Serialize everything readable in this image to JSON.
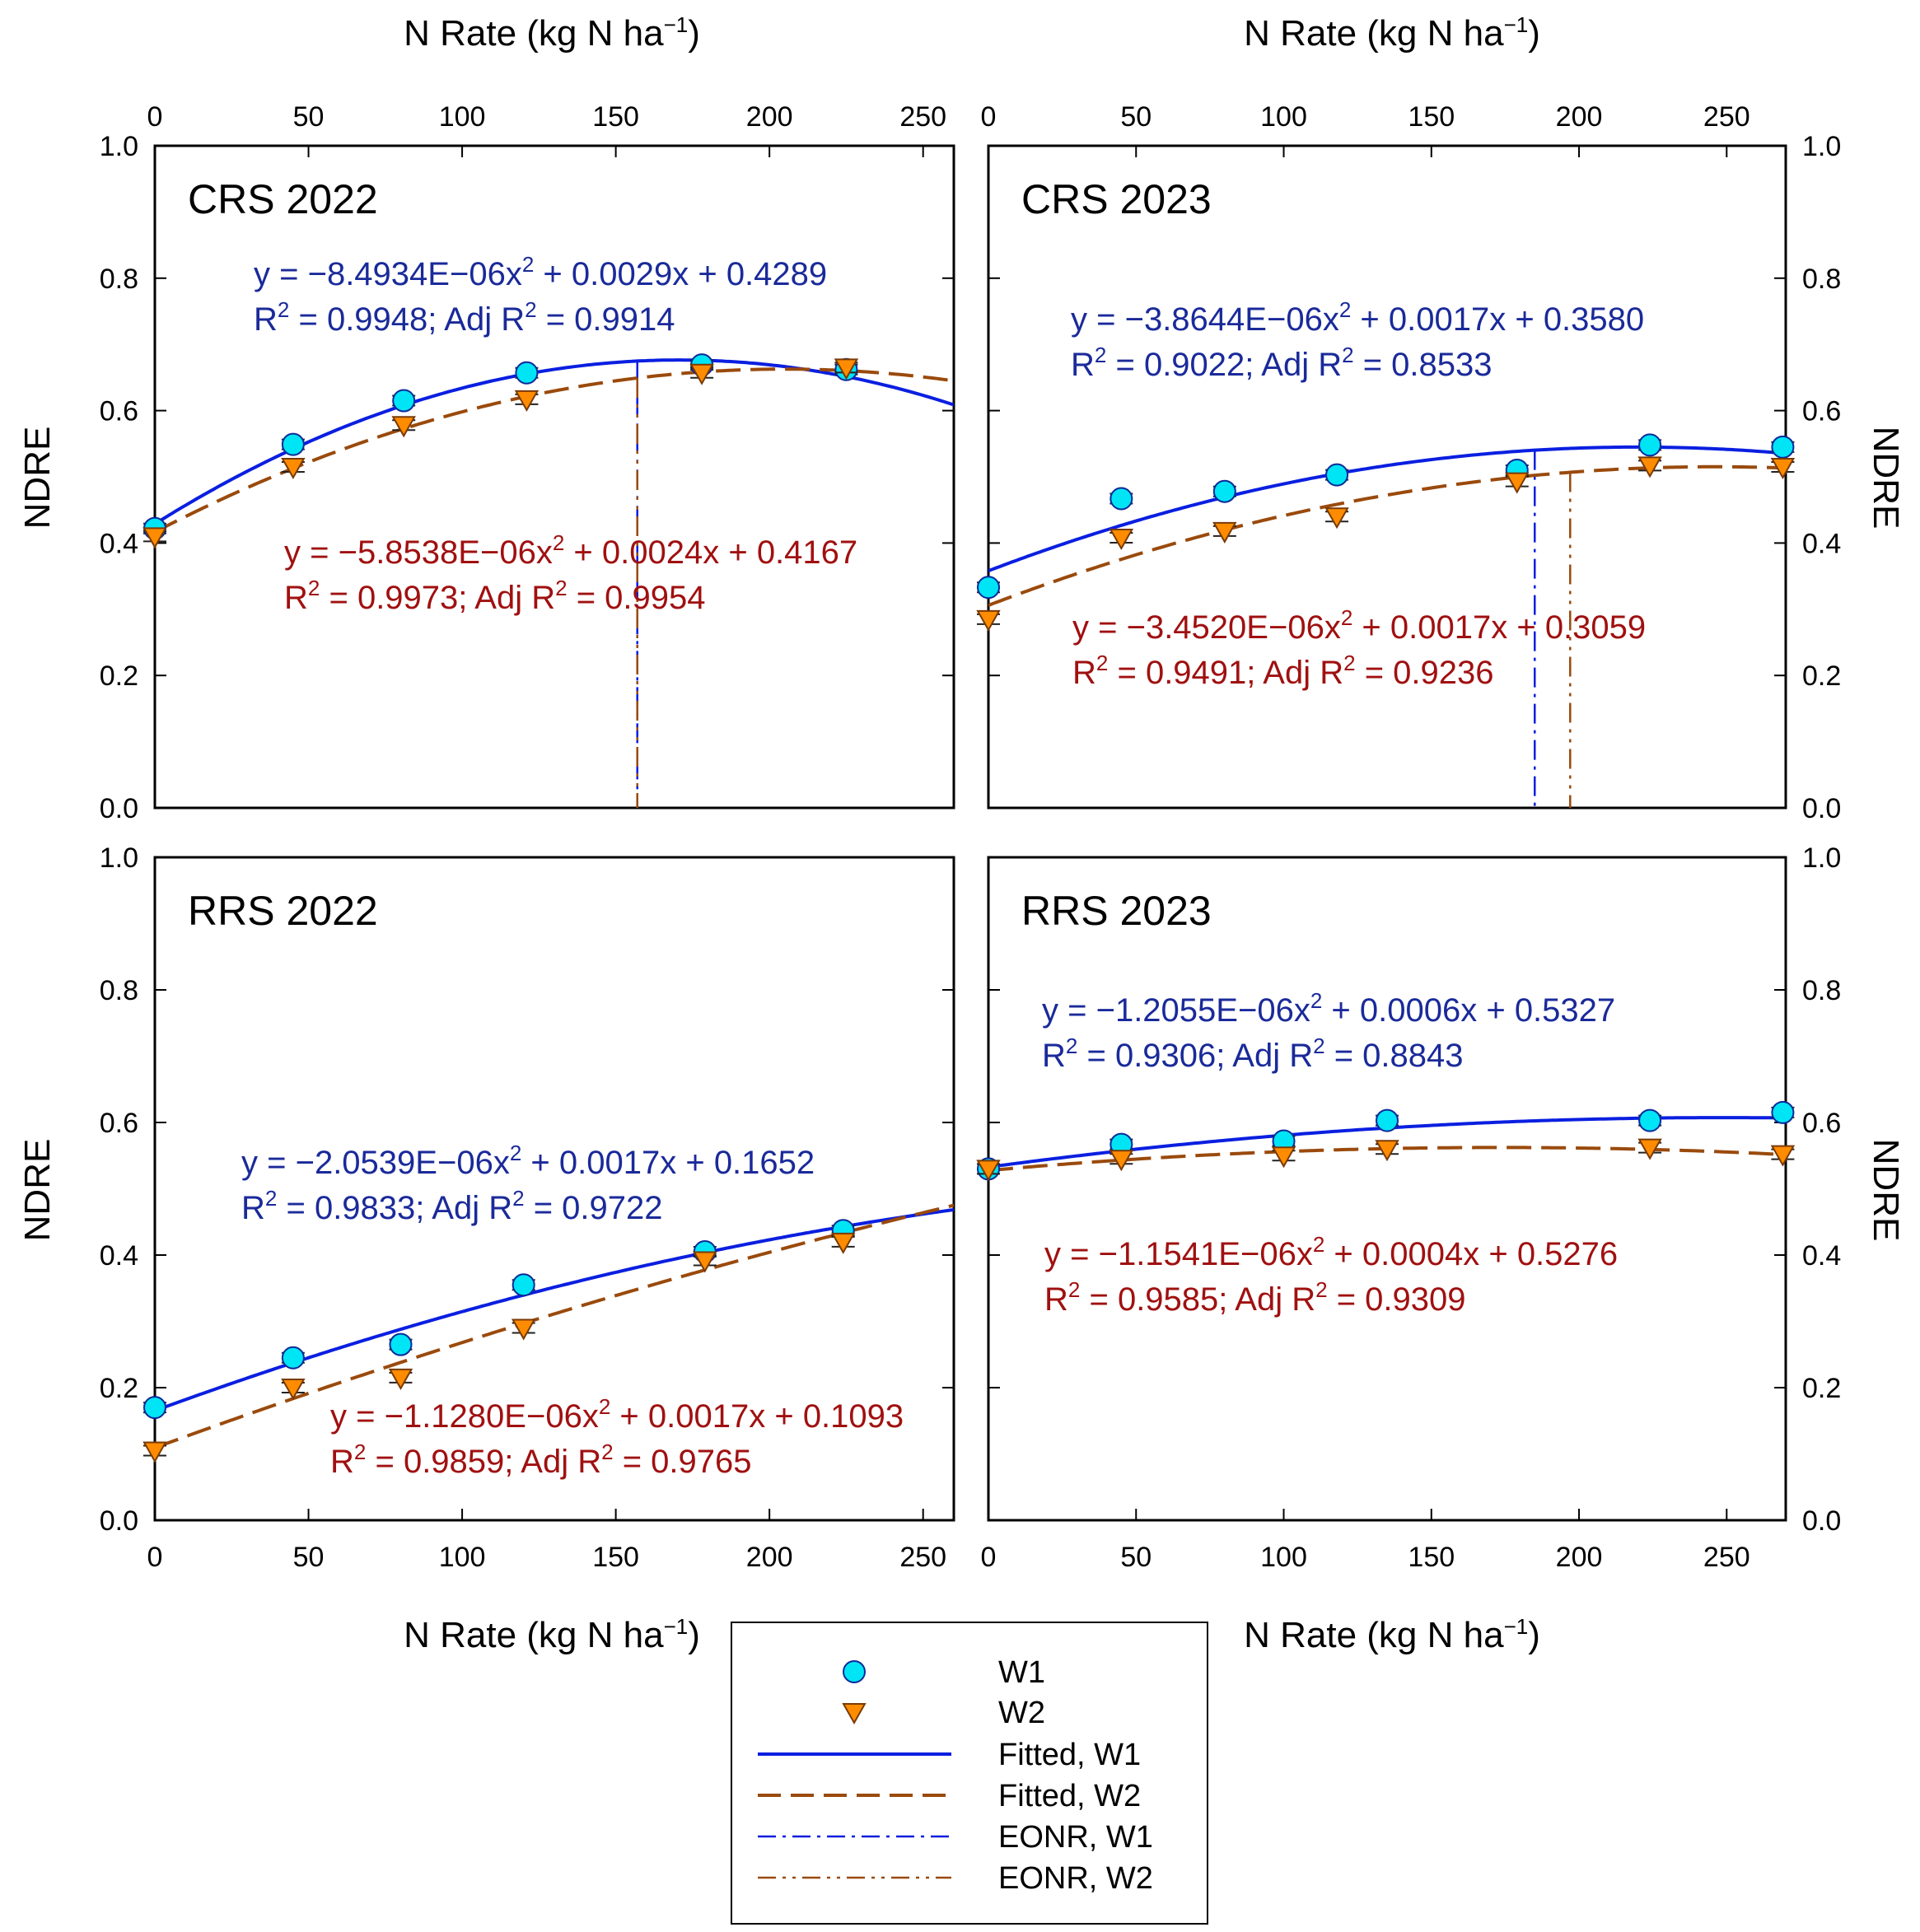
{
  "colors": {
    "w1_line": "#0a1fe0",
    "w1_marker": "#00e5f5",
    "w2_line": "#9a4a0c",
    "w2_marker": "#ff8c00",
    "w1_eq": "#1a2a9a",
    "w2_eq": "#a01010"
  },
  "xlabel": "N Rate (kg N ha",
  "xlabel_sup": "−1",
  "xlabel_close": ")",
  "ylabel": "NDRE",
  "legend": {
    "w1": "W1",
    "w2": "W2",
    "fitted_w1": "Fitted, W1",
    "fitted_w2": "Fitted, W2",
    "eonr_w1": "EONR, W1",
    "eonr_w2": "EONR, W2"
  },
  "chart_data": [
    {
      "id": "crs2022",
      "type": "scatter",
      "title": "CRS 2022",
      "xlim": [
        0,
        260
      ],
      "ylim": [
        0,
        1
      ],
      "xticks": [
        "0",
        "50",
        "100",
        "150",
        "200",
        "250"
      ],
      "yticks": [
        "0.0",
        "0.2",
        "0.4",
        "0.6",
        "0.8",
        "1.0"
      ],
      "series": [
        {
          "name": "W1",
          "x": [
            0,
            45,
            81,
            121,
            178,
            225
          ],
          "y": [
            0.422,
            0.549,
            0.615,
            0.657,
            0.669,
            0.662
          ],
          "fit": {
            "a": -8.4934e-06,
            "b": 0.0029,
            "c": 0.4289
          },
          "eonr": 157,
          "eq_line1": "y = −8.4934E−06x",
          "eq_line1b": " + 0.0029x + 0.4289",
          "eq_line2a": "R",
          "eq_line2b": " = 0.9948; Adj R",
          "eq_line2c": " = 0.9914"
        },
        {
          "name": "W2",
          "x": [
            0,
            45,
            81,
            121,
            178,
            225
          ],
          "y": [
            0.41,
            0.515,
            0.578,
            0.617,
            0.657,
            0.665
          ],
          "fit": {
            "a": -5.8538e-06,
            "b": 0.0024,
            "c": 0.4167
          },
          "eonr": 157,
          "eq_line1": "y = −5.8538E−06x",
          "eq_line1b": " + 0.0024x + 0.4167",
          "eq_line2a": "R",
          "eq_line2b": " = 0.9973; Adj R",
          "eq_line2c": " = 0.9954"
        }
      ]
    },
    {
      "id": "crs2023",
      "type": "scatter",
      "title": "CRS 2023",
      "xlim": [
        0,
        270
      ],
      "ylim": [
        0,
        1
      ],
      "xticks": [
        "0",
        "50",
        "100",
        "150",
        "200",
        "250"
      ],
      "yticks": [
        "0.0",
        "0.2",
        "0.4",
        "0.6",
        "0.8",
        "1.0"
      ],
      "series": [
        {
          "name": "W1",
          "x": [
            0,
            45,
            80,
            118,
            179,
            224,
            269
          ],
          "y": [
            0.333,
            0.467,
            0.478,
            0.503,
            0.51,
            0.548,
            0.545
          ],
          "fit": {
            "a": -3.8644e-06,
            "b": 0.0017,
            "c": 0.358
          },
          "eonr": 185,
          "eq_line1": "y = −3.8644E−06x",
          "eq_line1b": " + 0.0017x + 0.3580",
          "eq_line2a": "R",
          "eq_line2b": " = 0.9022; Adj R",
          "eq_line2c": " = 0.8533"
        },
        {
          "name": "W2",
          "x": [
            0,
            45,
            80,
            118,
            179,
            224,
            269
          ],
          "y": [
            0.285,
            0.408,
            0.418,
            0.44,
            0.493,
            0.517,
            0.515
          ],
          "fit": {
            "a": -3.452e-06,
            "b": 0.0017,
            "c": 0.3059
          },
          "eonr": 197,
          "eq_line1": "y = −3.4520E−06x",
          "eq_line1b": " + 0.0017x + 0.3059",
          "eq_line2a": "R",
          "eq_line2b": " = 0.9491; Adj R",
          "eq_line2c": " = 0.9236"
        }
      ]
    },
    {
      "id": "rrs2022",
      "type": "scatter",
      "title": "RRS 2022",
      "xlim": [
        0,
        260
      ],
      "ylim": [
        0,
        1
      ],
      "xticks": [
        "0",
        "50",
        "100",
        "150",
        "200",
        "250"
      ],
      "yticks": [
        "0.0",
        "0.2",
        "0.4",
        "0.6",
        "0.8",
        "1.0"
      ],
      "series": [
        {
          "name": "W1",
          "x": [
            0,
            45,
            80,
            120,
            179,
            224
          ],
          "y": [
            0.17,
            0.245,
            0.265,
            0.355,
            0.405,
            0.437
          ],
          "fit": {
            "a": -2.0539e-06,
            "b": 0.0017,
            "c": 0.1652
          },
          "eq_line1": "y = −2.0539E−06x",
          "eq_line1b": " + 0.0017x + 0.1652",
          "eq_line2a": "R",
          "eq_line2b": " = 0.9833; Adj R",
          "eq_line2c": " = 0.9722"
        },
        {
          "name": "W2",
          "x": [
            0,
            45,
            80,
            120,
            179,
            224
          ],
          "y": [
            0.105,
            0.2,
            0.215,
            0.29,
            0.392,
            0.42
          ],
          "fit": {
            "a": -1.128e-06,
            "b": 0.0017,
            "c": 0.1093
          },
          "eq_line1": "y = −1.1280E−06x",
          "eq_line1b": " + 0.0017x + 0.1093",
          "eq_line2a": "R",
          "eq_line2b": " = 0.9859; Adj R",
          "eq_line2c": " = 0.9765"
        }
      ]
    },
    {
      "id": "rrs2023",
      "type": "scatter",
      "title": "RRS 2023",
      "xlim": [
        0,
        270
      ],
      "ylim": [
        0,
        1
      ],
      "xticks": [
        "0",
        "50",
        "100",
        "150",
        "200",
        "250"
      ],
      "yticks": [
        "0.0",
        "0.2",
        "0.4",
        "0.6",
        "0.8",
        "1.0"
      ],
      "series": [
        {
          "name": "W1",
          "x": [
            0,
            45,
            100,
            135,
            224,
            269
          ],
          "y": [
            0.53,
            0.567,
            0.572,
            0.603,
            0.603,
            0.615
          ],
          "fit": {
            "a": -1.2055e-06,
            "b": 0.0006,
            "c": 0.5327
          },
          "eq_line1": "y = −1.2055E−06x",
          "eq_line1b": " + 0.0006x + 0.5327",
          "eq_line2a": "R",
          "eq_line2b": " = 0.9306; Adj R",
          "eq_line2c": " = 0.8843"
        },
        {
          "name": "W2",
          "x": [
            0,
            45,
            100,
            135,
            224,
            269
          ],
          "y": [
            0.53,
            0.545,
            0.55,
            0.56,
            0.562,
            0.552
          ],
          "fit": {
            "a": -1.1541e-06,
            "b": 0.0004,
            "c": 0.5276
          },
          "eq_line1": "y = −1.1541E−06x",
          "eq_line1b": " + 0.0004x + 0.5276",
          "eq_line2a": "R",
          "eq_line2b": " = 0.9585; Adj R",
          "eq_line2c": " = 0.9309"
        }
      ]
    }
  ]
}
